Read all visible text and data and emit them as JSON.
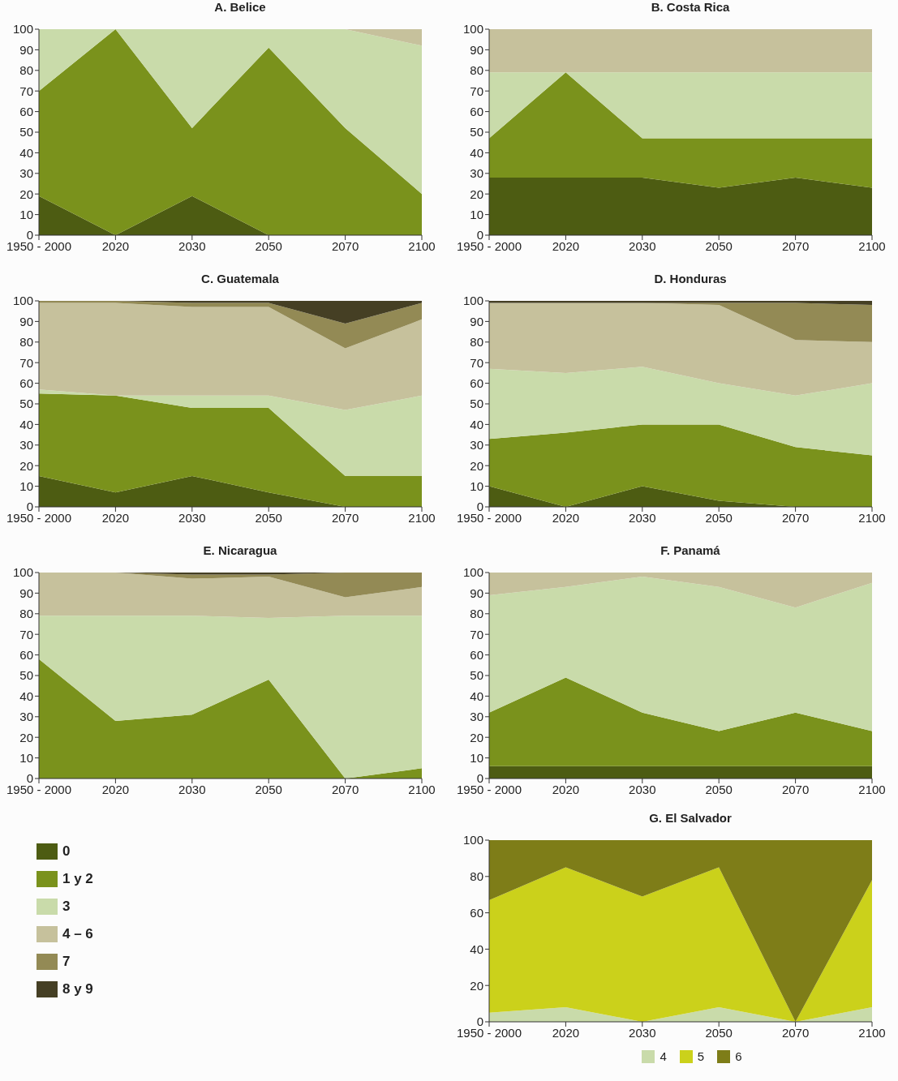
{
  "chart_data": [
    {
      "type": "area",
      "stacked": true,
      "title": "A. Belice",
      "categories": [
        "1950 - 2000",
        "2020",
        "2030",
        "2050",
        "2070",
        "2100"
      ],
      "ylim": [
        0,
        100
      ],
      "yticks": [
        0,
        10,
        20,
        30,
        40,
        50,
        60,
        70,
        80,
        90,
        100
      ],
      "legend": false,
      "series": [
        {
          "color": "#4d5c12",
          "values": [
            19,
            0,
            19,
            0,
            0,
            0
          ]
        },
        {
          "color": "#7a921c",
          "values": [
            51,
            100,
            33,
            91,
            52,
            20
          ]
        },
        {
          "color": "#c9dbaa",
          "values": [
            30,
            0,
            48,
            9,
            48,
            72
          ]
        },
        {
          "color": "#c6c19c",
          "values": [
            0,
            0,
            0,
            0,
            0,
            8
          ]
        }
      ]
    },
    {
      "type": "area",
      "stacked": true,
      "title": "B. Costa Rica",
      "categories": [
        "1950 - 2000",
        "2020",
        "2030",
        "2050",
        "2070",
        "2100"
      ],
      "ylim": [
        0,
        100
      ],
      "yticks": [
        0,
        10,
        20,
        30,
        40,
        50,
        60,
        70,
        80,
        90,
        100
      ],
      "legend": false,
      "series": [
        {
          "color": "#4d5c12",
          "values": [
            28,
            28,
            28,
            23,
            28,
            23
          ]
        },
        {
          "color": "#7a921c",
          "values": [
            19,
            51,
            19,
            24,
            19,
            24
          ]
        },
        {
          "color": "#c9dbaa",
          "values": [
            32,
            0,
            32,
            32,
            32,
            32
          ]
        },
        {
          "color": "#c6c19c",
          "values": [
            21,
            21,
            21,
            21,
            21,
            21
          ]
        }
      ]
    },
    {
      "type": "area",
      "stacked": true,
      "title": "C. Guatemala",
      "categories": [
        "1950 - 2000",
        "2020",
        "2030",
        "2050",
        "2070",
        "2100"
      ],
      "ylim": [
        0,
        100
      ],
      "yticks": [
        0,
        10,
        20,
        30,
        40,
        50,
        60,
        70,
        80,
        90,
        100
      ],
      "legend": "bottom left",
      "series": [
        {
          "name": "0",
          "color": "#4d5c12",
          "values": [
            15,
            7,
            15,
            7,
            0,
            0
          ]
        },
        {
          "name": "1 y 2",
          "color": "#7a921c",
          "values": [
            40,
            47,
            33,
            41,
            15,
            15
          ]
        },
        {
          "name": "3",
          "color": "#c9dbaa",
          "values": [
            2,
            0,
            6,
            6,
            32,
            39
          ]
        },
        {
          "name": "4 – 6",
          "color": "#c6c19c",
          "values": [
            42,
            45,
            43,
            43,
            30,
            37
          ]
        },
        {
          "name": "7",
          "color": "#938a55",
          "values": [
            1,
            1,
            2,
            2,
            12,
            8
          ]
        },
        {
          "name": "8 y 9",
          "color": "#453f24",
          "values": [
            0,
            0,
            1,
            1,
            11,
            1
          ]
        }
      ]
    },
    {
      "type": "area",
      "stacked": true,
      "title": "D. Honduras",
      "categories": [
        "1950 - 2000",
        "2020",
        "2030",
        "2050",
        "2070",
        "2100"
      ],
      "ylim": [
        0,
        100
      ],
      "yticks": [
        0,
        10,
        20,
        30,
        40,
        50,
        60,
        70,
        80,
        90,
        100
      ],
      "legend": false,
      "series": [
        {
          "color": "#4d5c12",
          "values": [
            10,
            0,
            10,
            3,
            0,
            0
          ]
        },
        {
          "color": "#7a921c",
          "values": [
            23,
            36,
            30,
            37,
            29,
            25
          ]
        },
        {
          "color": "#c9dbaa",
          "values": [
            34,
            29,
            28,
            20,
            25,
            35
          ]
        },
        {
          "color": "#c6c19c",
          "values": [
            32,
            34,
            31,
            38,
            27,
            20
          ]
        },
        {
          "color": "#938a55",
          "values": [
            0,
            0,
            0,
            1,
            18,
            18
          ]
        },
        {
          "color": "#453f24",
          "values": [
            1,
            1,
            1,
            1,
            1,
            2
          ]
        }
      ]
    },
    {
      "type": "area",
      "stacked": true,
      "title": "E. Nicaragua",
      "categories": [
        "1950 - 2000",
        "2020",
        "2030",
        "2050",
        "2070",
        "2100"
      ],
      "ylim": [
        0,
        100
      ],
      "yticks": [
        0,
        10,
        20,
        30,
        40,
        50,
        60,
        70,
        80,
        90,
        100
      ],
      "legend": false,
      "series": [
        {
          "color": "#7a921c",
          "values": [
            58,
            28,
            31,
            48,
            0,
            5
          ]
        },
        {
          "color": "#c9dbaa",
          "values": [
            21,
            51,
            48,
            30,
            79,
            74
          ]
        },
        {
          "color": "#c6c19c",
          "values": [
            21,
            21,
            18,
            20,
            9,
            14
          ]
        },
        {
          "color": "#938a55",
          "values": [
            0,
            0,
            2,
            1,
            12,
            7
          ]
        },
        {
          "color": "#453f24",
          "values": [
            0,
            0,
            1,
            1,
            0,
            0
          ]
        }
      ]
    },
    {
      "type": "area",
      "stacked": true,
      "title": "F. Panamá",
      "categories": [
        "1950 - 2000",
        "2020",
        "2030",
        "2050",
        "2070",
        "2100"
      ],
      "ylim": [
        0,
        100
      ],
      "yticks": [
        0,
        10,
        20,
        30,
        40,
        50,
        60,
        70,
        80,
        90,
        100
      ],
      "legend": false,
      "series": [
        {
          "color": "#4d5c12",
          "values": [
            6,
            6,
            6,
            6,
            6,
            6
          ]
        },
        {
          "color": "#7a921c",
          "values": [
            26,
            43,
            26,
            17,
            26,
            17
          ]
        },
        {
          "color": "#c9dbaa",
          "values": [
            57,
            44,
            66,
            70,
            51,
            72
          ]
        },
        {
          "color": "#c6c19c",
          "values": [
            11,
            7,
            2,
            7,
            17,
            5
          ]
        }
      ]
    },
    {
      "type": "area",
      "stacked": true,
      "title": "G. El Salvador",
      "categories": [
        "1950 - 2000",
        "2020",
        "2030",
        "2050",
        "2070",
        "2100"
      ],
      "ylim": [
        0,
        100
      ],
      "yticks": [
        0,
        20,
        40,
        60,
        80,
        100
      ],
      "legend": "bottom",
      "series": [
        {
          "name": "4",
          "color": "#c9dbaa",
          "values": [
            5,
            8,
            0,
            8,
            0,
            8
          ]
        },
        {
          "name": "5",
          "color": "#cbd11b",
          "values": [
            62,
            77,
            69,
            77,
            0,
            70
          ]
        },
        {
          "name": "6",
          "color": "#7e7d18",
          "values": [
            33,
            15,
            31,
            15,
            100,
            22
          ]
        }
      ]
    }
  ]
}
